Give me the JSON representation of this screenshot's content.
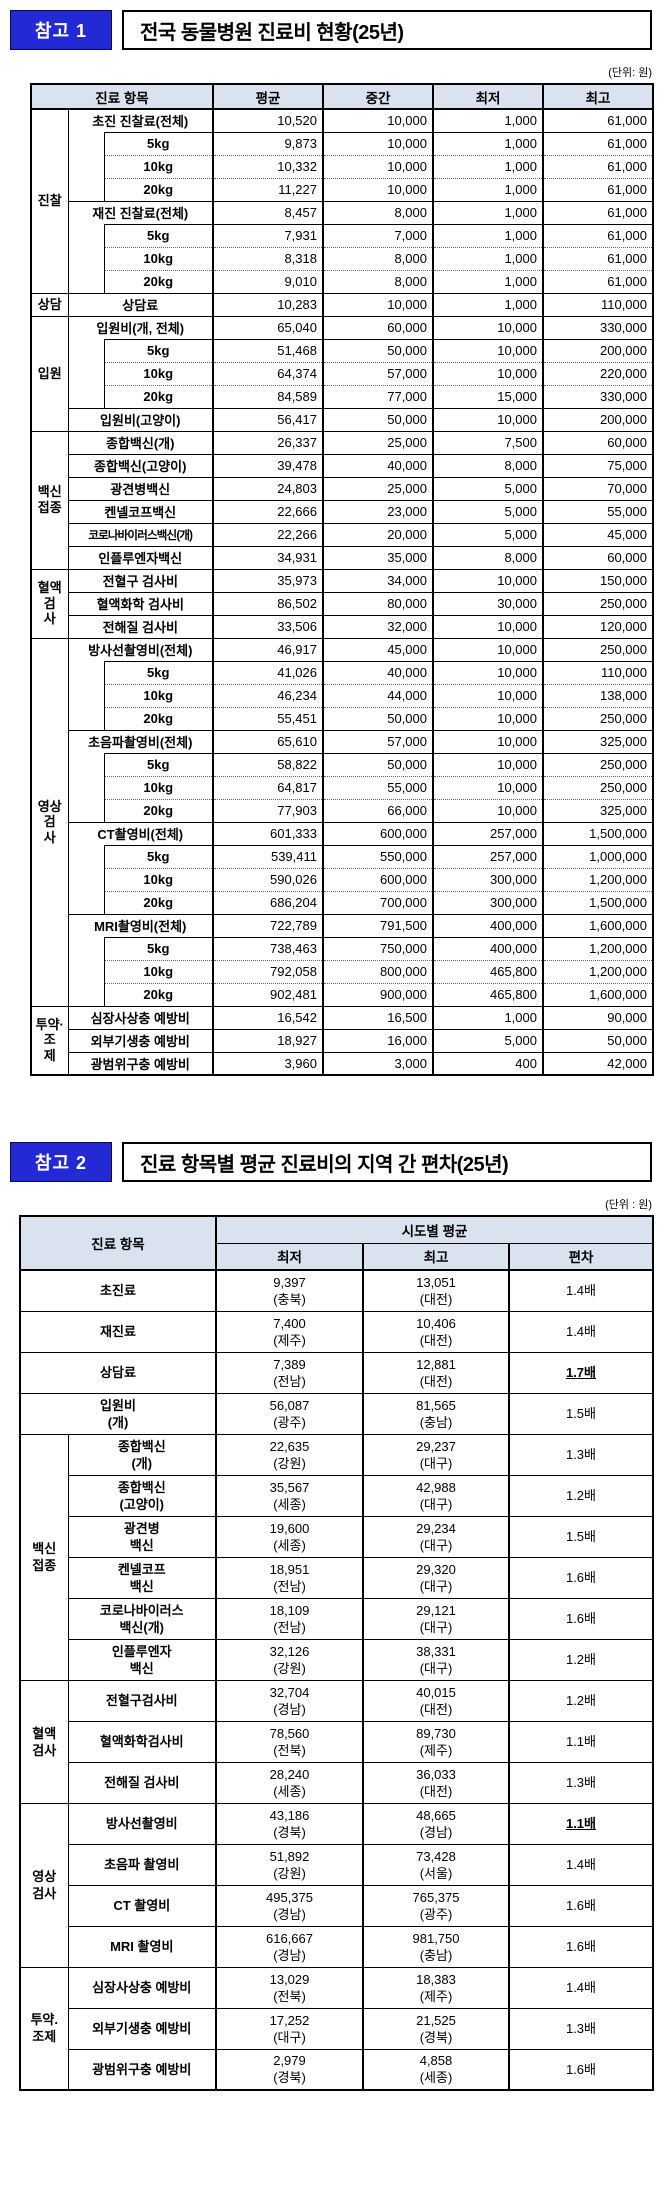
{
  "colors": {
    "accent_blue": "#2329d4",
    "table_header_bg": "#dbe2ef",
    "border": "#000000"
  },
  "section1": {
    "badge": "참고 1",
    "title": "전국 동물병원 진료비 현황(25년)",
    "unit": "(단위: 원)",
    "table": {
      "item_header": "진료 항목",
      "value_headers": [
        "평균",
        "중간",
        "최저",
        "최고"
      ],
      "groups": [
        {
          "label": "진찰",
          "rows": [
            {
              "label": "초진 진찰료(전체)",
              "sub": false,
              "values": [
                "10,520",
                "10,000",
                "1,000",
                "61,000"
              ]
            },
            {
              "label": "5kg",
              "sub": true,
              "values": [
                "9,873",
                "10,000",
                "1,000",
                "61,000"
              ]
            },
            {
              "label": "10kg",
              "sub": true,
              "dotted": true,
              "values": [
                "10,332",
                "10,000",
                "1,000",
                "61,000"
              ]
            },
            {
              "label": "20kg",
              "sub": true,
              "dotted": true,
              "values": [
                "11,227",
                "10,000",
                "1,000",
                "61,000"
              ]
            },
            {
              "label": "재진 진찰료(전체)",
              "sub": false,
              "values": [
                "8,457",
                "8,000",
                "1,000",
                "61,000"
              ]
            },
            {
              "label": "5kg",
              "sub": true,
              "values": [
                "7,931",
                "7,000",
                "1,000",
                "61,000"
              ]
            },
            {
              "label": "10kg",
              "sub": true,
              "dotted": true,
              "values": [
                "8,318",
                "8,000",
                "1,000",
                "61,000"
              ]
            },
            {
              "label": "20kg",
              "sub": true,
              "dotted": true,
              "values": [
                "9,010",
                "8,000",
                "1,000",
                "61,000"
              ]
            }
          ]
        },
        {
          "label": "상담",
          "rows": [
            {
              "label": "상담료",
              "sub": false,
              "values": [
                "10,283",
                "10,000",
                "1,000",
                "110,000"
              ]
            }
          ]
        },
        {
          "label": "입원",
          "rows": [
            {
              "label": "입원비(개, 전체)",
              "sub": false,
              "values": [
                "65,040",
                "60,000",
                "10,000",
                "330,000"
              ]
            },
            {
              "label": "5kg",
              "sub": true,
              "values": [
                "51,468",
                "50,000",
                "10,000",
                "200,000"
              ]
            },
            {
              "label": "10kg",
              "sub": true,
              "dotted": true,
              "values": [
                "64,374",
                "57,000",
                "10,000",
                "220,000"
              ]
            },
            {
              "label": "20kg",
              "sub": true,
              "dotted": true,
              "values": [
                "84,589",
                "77,000",
                "15,000",
                "330,000"
              ]
            },
            {
              "label": "입원비(고양이)",
              "sub": false,
              "values": [
                "56,417",
                "50,000",
                "10,000",
                "200,000"
              ]
            }
          ]
        },
        {
          "label": "백신\n접종",
          "rows": [
            {
              "label": "종합백신(개)",
              "sub": false,
              "values": [
                "26,337",
                "25,000",
                "7,500",
                "60,000"
              ]
            },
            {
              "label": "종합백신(고양이)",
              "sub": false,
              "values": [
                "39,478",
                "40,000",
                "8,000",
                "75,000"
              ]
            },
            {
              "label": "광견병백신",
              "sub": false,
              "values": [
                "24,803",
                "25,000",
                "5,000",
                "70,000"
              ]
            },
            {
              "label": "켄넬코프백신",
              "sub": false,
              "values": [
                "22,666",
                "23,000",
                "5,000",
                "55,000"
              ]
            },
            {
              "label": "코로나바이러스백신(개)",
              "sub": false,
              "values": [
                "22,266",
                "20,000",
                "5,000",
                "45,000"
              ]
            },
            {
              "label": "인플루엔자백신",
              "sub": false,
              "values": [
                "34,931",
                "35,000",
                "8,000",
                "60,000"
              ]
            }
          ]
        },
        {
          "label": "혈액검\n사",
          "rows": [
            {
              "label": "전혈구 검사비",
              "sub": false,
              "values": [
                "35,973",
                "34,000",
                "10,000",
                "150,000"
              ]
            },
            {
              "label": "혈액화학 검사비",
              "sub": false,
              "values": [
                "86,502",
                "80,000",
                "30,000",
                "250,000"
              ]
            },
            {
              "label": "전해질 검사비",
              "sub": false,
              "values": [
                "33,506",
                "32,000",
                "10,000",
                "120,000"
              ]
            }
          ]
        },
        {
          "label": "영상검\n사",
          "rows": [
            {
              "label": "방사선촬영비(전체)",
              "sub": false,
              "values": [
                "46,917",
                "45,000",
                "10,000",
                "250,000"
              ]
            },
            {
              "label": "5kg",
              "sub": true,
              "values": [
                "41,026",
                "40,000",
                "10,000",
                "110,000"
              ]
            },
            {
              "label": "10kg",
              "sub": true,
              "dotted": true,
              "values": [
                "46,234",
                "44,000",
                "10,000",
                "138,000"
              ]
            },
            {
              "label": "20kg",
              "sub": true,
              "dotted": true,
              "values": [
                "55,451",
                "50,000",
                "10,000",
                "250,000"
              ]
            },
            {
              "label": "초음파촬영비(전체)",
              "sub": false,
              "values": [
                "65,610",
                "57,000",
                "10,000",
                "325,000"
              ]
            },
            {
              "label": "5kg",
              "sub": true,
              "values": [
                "58,822",
                "50,000",
                "10,000",
                "250,000"
              ]
            },
            {
              "label": "10kg",
              "sub": true,
              "dotted": true,
              "values": [
                "64,817",
                "55,000",
                "10,000",
                "250,000"
              ]
            },
            {
              "label": "20kg",
              "sub": true,
              "dotted": true,
              "values": [
                "77,903",
                "66,000",
                "10,000",
                "325,000"
              ]
            },
            {
              "label": "CT촬영비(전체)",
              "sub": false,
              "values": [
                "601,333",
                "600,000",
                "257,000",
                "1,500,000"
              ]
            },
            {
              "label": "5kg",
              "sub": true,
              "values": [
                "539,411",
                "550,000",
                "257,000",
                "1,000,000"
              ]
            },
            {
              "label": "10kg",
              "sub": true,
              "dotted": true,
              "values": [
                "590,026",
                "600,000",
                "300,000",
                "1,200,000"
              ]
            },
            {
              "label": "20kg",
              "sub": true,
              "dotted": true,
              "values": [
                "686,204",
                "700,000",
                "300,000",
                "1,500,000"
              ]
            },
            {
              "label": "MRI촬영비(전체)",
              "sub": false,
              "values": [
                "722,789",
                "791,500",
                "400,000",
                "1,600,000"
              ]
            },
            {
              "label": "5kg",
              "sub": true,
              "values": [
                "738,463",
                "750,000",
                "400,000",
                "1,200,000"
              ]
            },
            {
              "label": "10kg",
              "sub": true,
              "dotted": true,
              "values": [
                "792,058",
                "800,000",
                "465,800",
                "1,200,000"
              ]
            },
            {
              "label": "20kg",
              "sub": true,
              "dotted": true,
              "values": [
                "902,481",
                "900,000",
                "465,800",
                "1,600,000"
              ]
            }
          ]
        },
        {
          "label": "투약·조\n제",
          "rows": [
            {
              "label": "심장사상충 예방비",
              "sub": false,
              "values": [
                "16,542",
                "16,500",
                "1,000",
                "90,000"
              ]
            },
            {
              "label": "외부기생충 예방비",
              "sub": false,
              "values": [
                "18,927",
                "16,000",
                "5,000",
                "50,000"
              ]
            },
            {
              "label": "광범위구충 예방비",
              "sub": false,
              "values": [
                "3,960",
                "3,000",
                "400",
                "42,000"
              ]
            }
          ]
        }
      ]
    }
  },
  "section2": {
    "badge": "참고 2",
    "title": "진료 항목별 평균 진료비의 지역 간 편차(25년)",
    "unit": "(단위 : 원)",
    "table": {
      "item_header": "진료 항목",
      "span_header": "시도별 평균",
      "sub_headers": [
        "최저",
        "최고",
        "편차"
      ],
      "groups": [
        {
          "label": null,
          "rows": [
            {
              "label": "초진료",
              "min": "9,397",
              "min_region": "(충북)",
              "max": "13,051",
              "max_region": "(대전)",
              "ratio": "1.4배",
              "hl": false
            },
            {
              "label": "재진료",
              "min": "7,400",
              "min_region": "(제주)",
              "max": "10,406",
              "max_region": "(대전)",
              "ratio": "1.4배",
              "hl": false
            },
            {
              "label": "상담료",
              "min": "7,389",
              "min_region": "(전남)",
              "max": "12,881",
              "max_region": "(대전)",
              "ratio": "1.7배",
              "hl": true
            },
            {
              "label": "입원비\n(개)",
              "min": "56,087",
              "min_region": "(광주)",
              "max": "81,565",
              "max_region": "(충남)",
              "ratio": "1.5배",
              "hl": false
            }
          ]
        },
        {
          "label": "백신\n접종",
          "rows": [
            {
              "label": "종합백신\n(개)",
              "min": "22,635",
              "min_region": "(강원)",
              "max": "29,237",
              "max_region": "(대구)",
              "ratio": "1.3배",
              "hl": false
            },
            {
              "label": "종합백신\n(고양이)",
              "min": "35,567",
              "min_region": "(세종)",
              "max": "42,988",
              "max_region": "(대구)",
              "ratio": "1.2배",
              "hl": false
            },
            {
              "label": "광견병\n백신",
              "min": "19,600",
              "min_region": "(세종)",
              "max": "29,234",
              "max_region": "(대구)",
              "ratio": "1.5배",
              "hl": false
            },
            {
              "label": "켄넬코프\n백신",
              "min": "18,951",
              "min_region": "(전남)",
              "max": "29,320",
              "max_region": "(대구)",
              "ratio": "1.6배",
              "hl": false
            },
            {
              "label": "코로나바이러스\n백신(개)",
              "min": "18,109",
              "min_region": "(전남)",
              "max": "29,121",
              "max_region": "(대구)",
              "ratio": "1.6배",
              "hl": false
            },
            {
              "label": "인플루엔자\n백신",
              "min": "32,126",
              "min_region": "(강원)",
              "max": "38,331",
              "max_region": "(대구)",
              "ratio": "1.2배",
              "hl": false
            }
          ]
        },
        {
          "label": "혈액\n검사",
          "rows": [
            {
              "label": "전혈구검사비",
              "min": "32,704",
              "min_region": "(경남)",
              "max": "40,015",
              "max_region": "(대전)",
              "ratio": "1.2배",
              "hl": false
            },
            {
              "label": "혈액화학검사비",
              "min": "78,560",
              "min_region": "(전북)",
              "max": "89,730",
              "max_region": "(제주)",
              "ratio": "1.1배",
              "hl": false
            },
            {
              "label": "전해질 검사비",
              "min": "28,240",
              "min_region": "(세종)",
              "max": "36,033",
              "max_region": "(대전)",
              "ratio": "1.3배",
              "hl": false
            }
          ]
        },
        {
          "label": "영상\n검사",
          "rows": [
            {
              "label": "방사선촬영비",
              "min": "43,186",
              "min_region": "(경북)",
              "max": "48,665",
              "max_region": "(경남)",
              "ratio": "1.1배",
              "hl": true
            },
            {
              "label": "초음파 촬영비",
              "min": "51,892",
              "min_region": "(강원)",
              "max": "73,428",
              "max_region": "(서울)",
              "ratio": "1.4배",
              "hl": false
            },
            {
              "label": "CT 촬영비",
              "min": "495,375",
              "min_region": "(경남)",
              "max": "765,375",
              "max_region": "(광주)",
              "ratio": "1.6배",
              "hl": false
            },
            {
              "label": "MRI 촬영비",
              "min": "616,667",
              "min_region": "(경남)",
              "max": "981,750",
              "max_region": "(충남)",
              "ratio": "1.6배",
              "hl": false
            }
          ]
        },
        {
          "label": "투약.\n조제",
          "rows": [
            {
              "label": "심장사상충 예방비",
              "min": "13,029",
              "min_region": "(전북)",
              "max": "18,383",
              "max_region": "(제주)",
              "ratio": "1.4배",
              "hl": false
            },
            {
              "label": "외부기생충 예방비",
              "min": "17,252",
              "min_region": "(대구)",
              "max": "21,525",
              "max_region": "(경북)",
              "ratio": "1.3배",
              "hl": false
            },
            {
              "label": "광범위구충 예방비",
              "min": "2,979",
              "min_region": "(경북)",
              "max": "4,858",
              "max_region": "(세종)",
              "ratio": "1.6배",
              "hl": false
            }
          ]
        }
      ]
    }
  }
}
